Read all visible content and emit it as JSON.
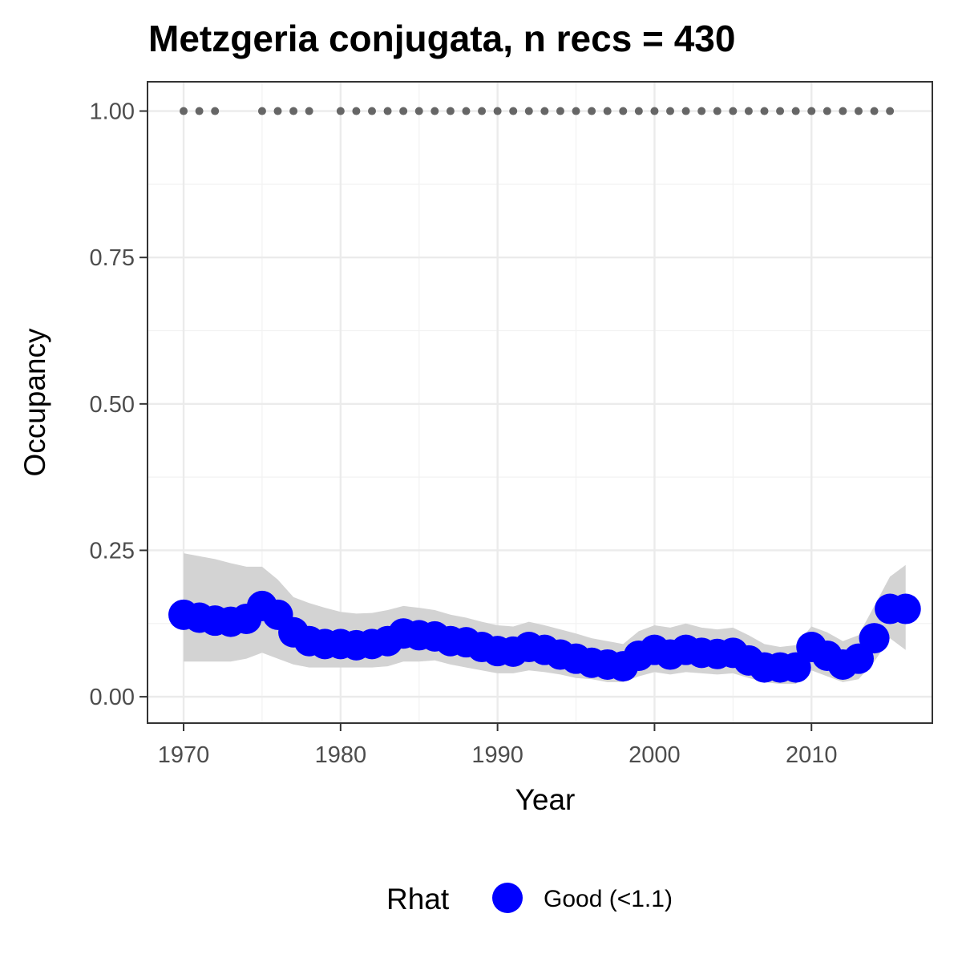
{
  "chart_data": {
    "type": "line",
    "title": "Metzgeria conjugata, n recs = 430",
    "xlabel": "Year",
    "ylabel": "Occupancy",
    "xlim": [
      1967.7,
      2017.7
    ],
    "ylim": [
      -0.045,
      1.05
    ],
    "x_ticks": [
      1970,
      1980,
      1990,
      2000,
      2010
    ],
    "x_tick_labels": [
      "1970",
      "1980",
      "1990",
      "2000",
      "2010"
    ],
    "y_ticks": [
      0,
      0.25,
      0.5,
      0.75,
      1.0
    ],
    "y_tick_labels": [
      "0.00",
      "0.25",
      "0.50",
      "0.75",
      "1.00"
    ],
    "grid": true,
    "legend": {
      "title": "Rhat",
      "position": "bottom",
      "entries": [
        {
          "label": "Good (<1.1)",
          "color": "#0000ff"
        }
      ]
    },
    "colors": {
      "estimate": "#0000ff",
      "ribbon": "#d3d3d3",
      "record_years": "#666666"
    },
    "series": [
      {
        "name": "Good (<1.1)",
        "x": [
          1970,
          1971,
          1972,
          1973,
          1974,
          1975,
          1976,
          1977,
          1978,
          1979,
          1980,
          1981,
          1982,
          1983,
          1984,
          1985,
          1986,
          1987,
          1988,
          1989,
          1990,
          1991,
          1992,
          1993,
          1994,
          1995,
          1996,
          1997,
          1998,
          1999,
          2000,
          2001,
          2002,
          2003,
          2004,
          2005,
          2006,
          2007,
          2008,
          2009,
          2010,
          2011,
          2012,
          2013,
          2014,
          2015,
          2016
        ],
        "y": [
          0.14,
          0.135,
          0.13,
          0.128,
          0.133,
          0.155,
          0.14,
          0.11,
          0.095,
          0.09,
          0.09,
          0.088,
          0.09,
          0.095,
          0.108,
          0.105,
          0.103,
          0.095,
          0.093,
          0.085,
          0.078,
          0.077,
          0.085,
          0.08,
          0.072,
          0.065,
          0.058,
          0.055,
          0.052,
          0.07,
          0.08,
          0.072,
          0.08,
          0.075,
          0.073,
          0.075,
          0.062,
          0.05,
          0.05,
          0.05,
          0.085,
          0.07,
          0.055,
          0.065,
          0.1,
          0.15,
          0.15
        ],
        "lower": [
          0.06,
          0.06,
          0.06,
          0.06,
          0.065,
          0.075,
          0.065,
          0.055,
          0.05,
          0.05,
          0.05,
          0.05,
          0.05,
          0.052,
          0.06,
          0.06,
          0.062,
          0.055,
          0.05,
          0.045,
          0.04,
          0.04,
          0.045,
          0.042,
          0.038,
          0.032,
          0.03,
          0.025,
          0.025,
          0.035,
          0.042,
          0.038,
          0.042,
          0.04,
          0.038,
          0.04,
          0.032,
          0.025,
          0.022,
          0.022,
          0.045,
          0.035,
          0.025,
          0.03,
          0.06,
          0.1,
          0.08
        ],
        "upper": [
          0.245,
          0.24,
          0.235,
          0.228,
          0.222,
          0.222,
          0.2,
          0.17,
          0.16,
          0.152,
          0.145,
          0.142,
          0.143,
          0.148,
          0.155,
          0.152,
          0.148,
          0.14,
          0.135,
          0.128,
          0.122,
          0.12,
          0.128,
          0.122,
          0.115,
          0.108,
          0.1,
          0.095,
          0.09,
          0.112,
          0.122,
          0.118,
          0.125,
          0.118,
          0.115,
          0.118,
          0.105,
          0.09,
          0.085,
          0.088,
          0.12,
          0.11,
          0.095,
          0.105,
          0.155,
          0.205,
          0.225
        ]
      }
    ],
    "record_years": {
      "y": 1.0,
      "x": [
        1970,
        1971,
        1972,
        1975,
        1976,
        1977,
        1978,
        1980,
        1981,
        1982,
        1983,
        1984,
        1985,
        1986,
        1987,
        1988,
        1989,
        1990,
        1991,
        1992,
        1993,
        1994,
        1995,
        1996,
        1997,
        1998,
        1999,
        2000,
        2001,
        2002,
        2003,
        2004,
        2005,
        2006,
        2007,
        2008,
        2009,
        2010,
        2011,
        2012,
        2013,
        2014,
        2015
      ]
    }
  }
}
